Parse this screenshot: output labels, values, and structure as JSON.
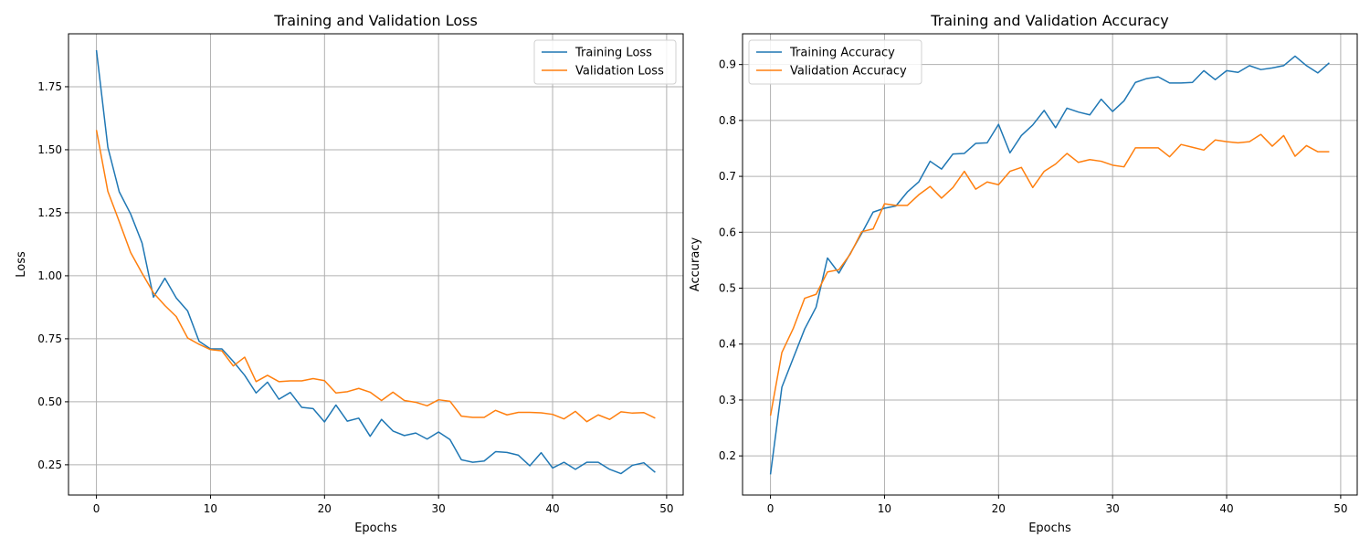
{
  "chart_data": [
    {
      "type": "line",
      "title": "Training and Validation Loss",
      "xlabel": "Epochs",
      "ylabel": "Loss",
      "xlim": [
        -2.45,
        51.45
      ],
      "ylim": [
        0.13,
        1.96
      ],
      "xticks": [
        0,
        10,
        20,
        30,
        40,
        50
      ],
      "xtick_labels": [
        "0",
        "10",
        "20",
        "30",
        "40",
        "50"
      ],
      "yticks": [
        0.25,
        0.5,
        0.75,
        1.0,
        1.25,
        1.5,
        1.75
      ],
      "ytick_labels": [
        "0.25",
        "0.50",
        "0.75",
        "1.00",
        "1.25",
        "1.50",
        "1.75"
      ],
      "grid": true,
      "legend_position": "top-right",
      "series": [
        {
          "name": "Training Loss",
          "color": "#1f77b4",
          "x": [
            0,
            1,
            2,
            3,
            4,
            5,
            6,
            7,
            8,
            9,
            10,
            11,
            12,
            13,
            14,
            15,
            16,
            17,
            18,
            19,
            20,
            21,
            22,
            23,
            24,
            25,
            26,
            27,
            28,
            29,
            30,
            31,
            32,
            33,
            34,
            35,
            36,
            37,
            38,
            39,
            40,
            41,
            42,
            43,
            44,
            45,
            46,
            47,
            48,
            49
          ],
          "y": [
            1.895,
            1.51,
            1.333,
            1.245,
            1.13,
            0.915,
            0.99,
            0.912,
            0.86,
            0.74,
            0.71,
            0.71,
            0.66,
            0.605,
            0.535,
            0.578,
            0.51,
            0.537,
            0.478,
            0.473,
            0.42,
            0.487,
            0.423,
            0.435,
            0.363,
            0.43,
            0.384,
            0.366,
            0.376,
            0.352,
            0.38,
            0.35,
            0.27,
            0.26,
            0.265,
            0.302,
            0.299,
            0.288,
            0.246,
            0.298,
            0.237,
            0.26,
            0.232,
            0.26,
            0.26,
            0.232,
            0.215,
            0.248,
            0.258,
            0.22
          ]
        },
        {
          "name": "Validation Loss",
          "color": "#ff7f0e",
          "x": [
            0,
            1,
            2,
            3,
            4,
            5,
            6,
            7,
            8,
            9,
            10,
            11,
            12,
            13,
            14,
            15,
            16,
            17,
            18,
            19,
            20,
            21,
            22,
            23,
            24,
            25,
            26,
            27,
            28,
            29,
            30,
            31,
            32,
            33,
            34,
            35,
            36,
            37,
            38,
            39,
            40,
            41,
            42,
            43,
            44,
            45,
            46,
            47,
            48,
            49
          ],
          "y": [
            1.578,
            1.335,
            1.215,
            1.092,
            1.01,
            0.932,
            0.882,
            0.838,
            0.753,
            0.728,
            0.707,
            0.702,
            0.642,
            0.677,
            0.58,
            0.605,
            0.58,
            0.583,
            0.583,
            0.592,
            0.584,
            0.535,
            0.54,
            0.553,
            0.538,
            0.505,
            0.538,
            0.505,
            0.498,
            0.484,
            0.508,
            0.502,
            0.443,
            0.438,
            0.438,
            0.466,
            0.448,
            0.458,
            0.458,
            0.456,
            0.45,
            0.432,
            0.462,
            0.421,
            0.448,
            0.43,
            0.46,
            0.455,
            0.457,
            0.435
          ]
        }
      ]
    },
    {
      "type": "line",
      "title": "Training and Validation Accuracy",
      "xlabel": "Epochs",
      "ylabel": "Accuracy",
      "xlim": [
        -2.45,
        51.45
      ],
      "ylim": [
        0.13,
        0.955
      ],
      "xticks": [
        0,
        10,
        20,
        30,
        40,
        50
      ],
      "xtick_labels": [
        "0",
        "10",
        "20",
        "30",
        "40",
        "50"
      ],
      "yticks": [
        0.2,
        0.3,
        0.4,
        0.5,
        0.6,
        0.7,
        0.8,
        0.9
      ],
      "ytick_labels": [
        "0.2",
        "0.3",
        "0.4",
        "0.5",
        "0.6",
        "0.7",
        "0.8",
        "0.9"
      ],
      "grid": true,
      "legend_position": "top-left",
      "series": [
        {
          "name": "Training Accuracy",
          "color": "#1f77b4",
          "x": [
            0,
            1,
            2,
            3,
            4,
            5,
            6,
            7,
            8,
            9,
            10,
            11,
            12,
            13,
            14,
            15,
            16,
            17,
            18,
            19,
            20,
            21,
            22,
            23,
            24,
            25,
            26,
            27,
            28,
            29,
            30,
            31,
            32,
            33,
            34,
            35,
            36,
            37,
            38,
            39,
            40,
            41,
            42,
            43,
            44,
            45,
            46,
            47,
            48,
            49
          ],
          "y": [
            0.167,
            0.323,
            0.375,
            0.427,
            0.466,
            0.554,
            0.527,
            0.562,
            0.598,
            0.636,
            0.643,
            0.647,
            0.672,
            0.69,
            0.727,
            0.713,
            0.74,
            0.741,
            0.759,
            0.76,
            0.793,
            0.742,
            0.773,
            0.792,
            0.818,
            0.787,
            0.822,
            0.815,
            0.81,
            0.838,
            0.816,
            0.835,
            0.868,
            0.875,
            0.878,
            0.867,
            0.867,
            0.868,
            0.889,
            0.873,
            0.889,
            0.886,
            0.898,
            0.891,
            0.894,
            0.898,
            0.915,
            0.898,
            0.885,
            0.903
          ]
        },
        {
          "name": "Validation Accuracy",
          "color": "#ff7f0e",
          "x": [
            0,
            1,
            2,
            3,
            4,
            5,
            6,
            7,
            8,
            9,
            10,
            11,
            12,
            13,
            14,
            15,
            16,
            17,
            18,
            19,
            20,
            21,
            22,
            23,
            24,
            25,
            26,
            27,
            28,
            29,
            30,
            31,
            32,
            33,
            34,
            35,
            36,
            37,
            38,
            39,
            40,
            41,
            42,
            43,
            44,
            45,
            46,
            47,
            48,
            49
          ],
          "y": [
            0.272,
            0.385,
            0.428,
            0.482,
            0.489,
            0.529,
            0.533,
            0.561,
            0.601,
            0.606,
            0.651,
            0.648,
            0.648,
            0.667,
            0.682,
            0.661,
            0.68,
            0.709,
            0.677,
            0.69,
            0.685,
            0.709,
            0.716,
            0.68,
            0.709,
            0.722,
            0.741,
            0.725,
            0.73,
            0.727,
            0.72,
            0.717,
            0.751,
            0.751,
            0.751,
            0.735,
            0.757,
            0.752,
            0.747,
            0.765,
            0.762,
            0.76,
            0.762,
            0.775,
            0.754,
            0.773,
            0.736,
            0.755,
            0.744,
            0.744
          ]
        }
      ]
    }
  ]
}
